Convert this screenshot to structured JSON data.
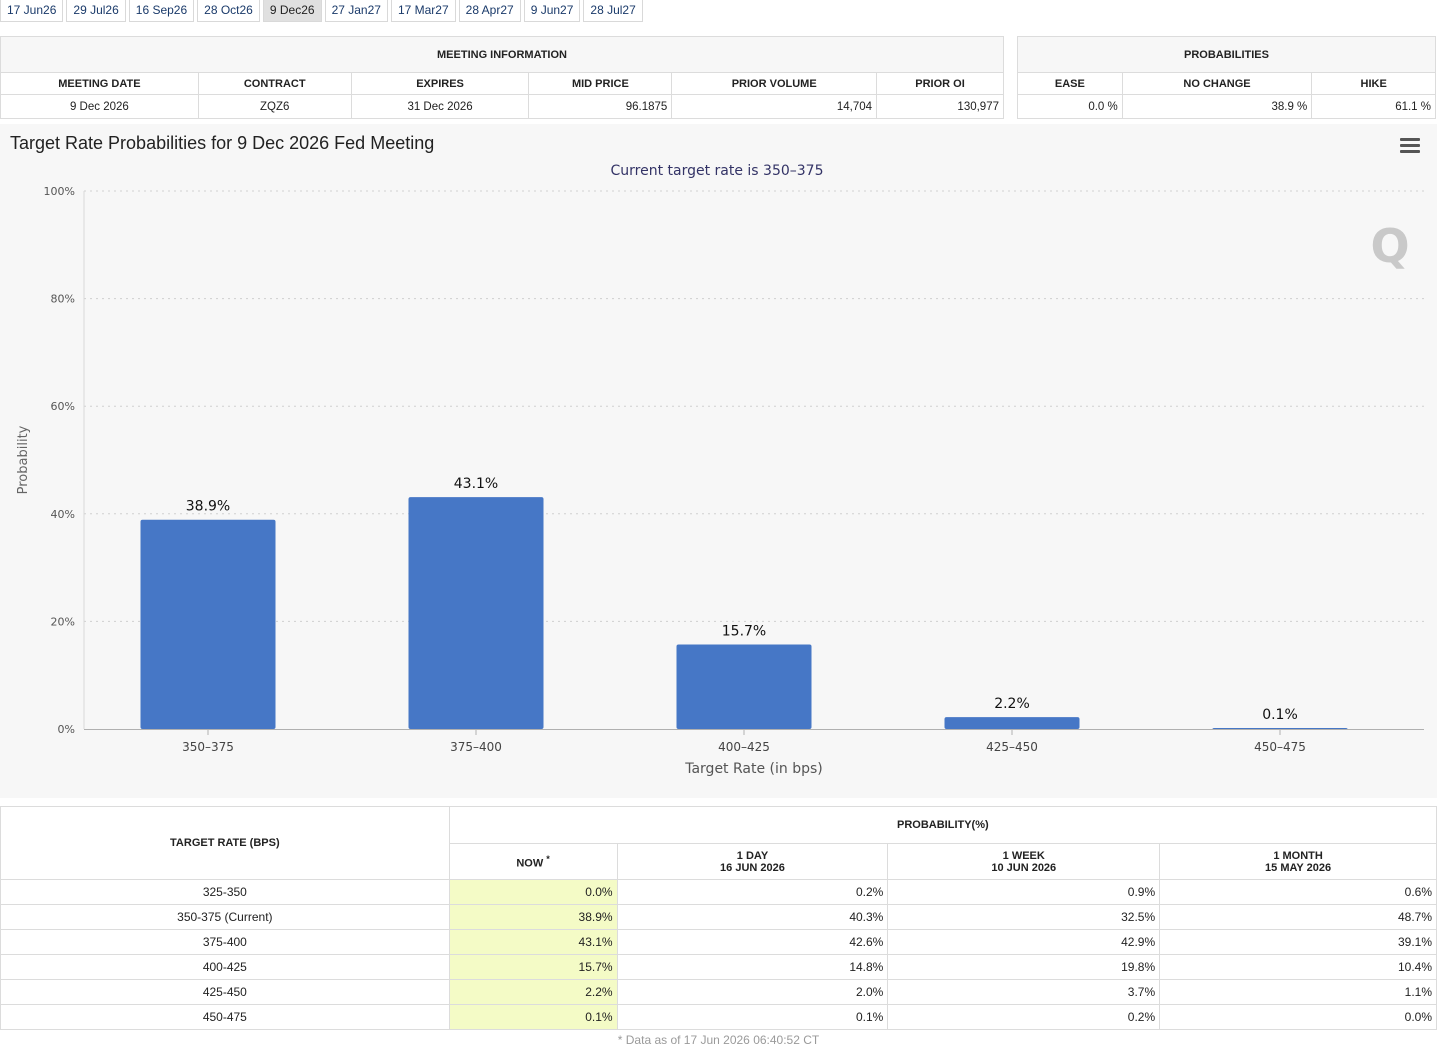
{
  "tabs": [
    "17 Jun26",
    "29 Jul26",
    "16 Sep26",
    "28 Oct26",
    "9 Dec26",
    "27 Jan27",
    "17 Mar27",
    "28 Apr27",
    "9 Jun27",
    "28 Jul27"
  ],
  "active_tab": "9 Dec26",
  "meeting_info": {
    "caption": "MEETING INFORMATION",
    "headers": [
      "MEETING DATE",
      "CONTRACT",
      "EXPIRES",
      "MID PRICE",
      "PRIOR VOLUME",
      "PRIOR OI"
    ],
    "row": [
      "9 Dec 2026",
      "ZQZ6",
      "31 Dec 2026",
      "96.1875",
      "14,704",
      "130,977"
    ]
  },
  "probabilities": {
    "caption": "PROBABILITIES",
    "headers": [
      "EASE",
      "NO CHANGE",
      "HIKE"
    ],
    "row": [
      "0.0 %",
      "38.9 %",
      "61.1 %"
    ]
  },
  "chart": {
    "title": "Target Rate Probabilities for 9 Dec 2026 Fed Meeting",
    "subtitle": "Current target rate is 350–375",
    "menu_icon": "hamburger-menu-icon",
    "watermark": "Q",
    "bar_color": "#4677c6"
  },
  "chart_data": {
    "type": "bar",
    "title": "Target Rate Probabilities for 9 Dec 2026 Fed Meeting",
    "subtitle": "Current target rate is 350–375",
    "categories": [
      "350–375",
      "375–400",
      "400–425",
      "425–450",
      "450–475"
    ],
    "values": [
      38.9,
      43.1,
      15.7,
      2.2,
      0.1
    ],
    "data_labels": [
      "38.9%",
      "43.1%",
      "15.7%",
      "2.2%",
      "0.1%"
    ],
    "xlabel": "Target Rate (in bps)",
    "ylabel": "Probability",
    "ylim": [
      0,
      100
    ],
    "yticks": [
      0,
      20,
      40,
      60,
      80,
      100
    ],
    "ytick_labels": [
      "0%",
      "20%",
      "40%",
      "60%",
      "80%",
      "100%"
    ],
    "grid": true
  },
  "prob_table": {
    "target_header": "TARGET RATE (BPS)",
    "prob_header": "PROBABILITY(%)",
    "now_label": "NOW",
    "now_marker": "*",
    "columns": [
      {
        "line1": "1 DAY",
        "line2": "16 JUN 2026"
      },
      {
        "line1": "1 WEEK",
        "line2": "10 JUN 2026"
      },
      {
        "line1": "1 MONTH",
        "line2": "15 MAY 2026"
      }
    ],
    "rows": [
      {
        "rate": "325-350",
        "now": "0.0%",
        "day": "0.2%",
        "week": "0.9%",
        "month": "0.6%"
      },
      {
        "rate": "350-375 (Current)",
        "now": "38.9%",
        "day": "40.3%",
        "week": "32.5%",
        "month": "48.7%"
      },
      {
        "rate": "375-400",
        "now": "43.1%",
        "day": "42.6%",
        "week": "42.9%",
        "month": "39.1%"
      },
      {
        "rate": "400-425",
        "now": "15.7%",
        "day": "14.8%",
        "week": "19.8%",
        "month": "10.4%"
      },
      {
        "rate": "425-450",
        "now": "2.2%",
        "day": "2.0%",
        "week": "3.7%",
        "month": "1.1%"
      },
      {
        "rate": "450-475",
        "now": "0.1%",
        "day": "0.1%",
        "week": "0.2%",
        "month": "0.0%"
      }
    ]
  },
  "footnote": "* Data as of 17 Jun 2026 06:40:52 CT"
}
